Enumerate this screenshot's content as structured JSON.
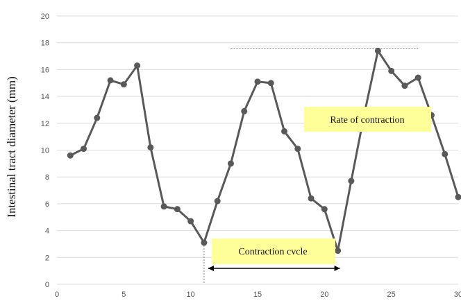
{
  "chart_data": {
    "type": "line",
    "ylabel": "Intestinal tract diameter (mm)",
    "xlabel": "",
    "xlim": [
      0,
      30
    ],
    "ylim": [
      0,
      20
    ],
    "xticks": [
      0,
      5,
      10,
      15,
      20,
      25,
      30
    ],
    "yticks": [
      0,
      2,
      4,
      6,
      8,
      10,
      12,
      14,
      16,
      18,
      20
    ],
    "grid": "horizontal",
    "series": [
      {
        "color": "#595959",
        "x": [
          1,
          2,
          3,
          4,
          5,
          6,
          7,
          8,
          9,
          10,
          11,
          12,
          13,
          14,
          15,
          16,
          17,
          18,
          19,
          20,
          21,
          22,
          23,
          24,
          25,
          26,
          27,
          28,
          29,
          30
        ],
        "y": [
          9.6,
          10.1,
          12.4,
          15.2,
          14.9,
          16.3,
          10.2,
          5.8,
          5.6,
          4.7,
          3.1,
          6.2,
          9.0,
          12.9,
          15.1,
          15.0,
          11.4,
          10.1,
          6.4,
          5.6,
          2.5,
          7.7,
          12.8,
          17.4,
          15.9,
          14.8,
          15.4,
          12.6,
          9.7,
          6.5
        ]
      }
    ],
    "annotations": {
      "rate_label": "Rate of contraction",
      "cycle_label": "Contraction cvcle",
      "label_fill": "#ffff99",
      "rate_line_y": 17.6,
      "rate_line_x": [
        13,
        27
      ],
      "cycle_span_x": [
        11,
        21
      ]
    }
  }
}
